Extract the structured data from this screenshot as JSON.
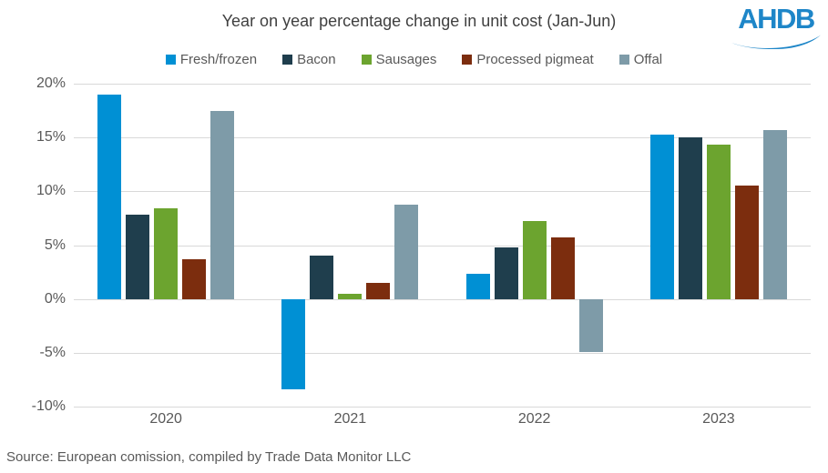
{
  "title": "Year on year percentage change in unit cost (Jan-Jun)",
  "logo": {
    "text": "AHDB",
    "color": "#1E86C8"
  },
  "source": "Source: European comission, compiled by Trade Data Monitor LLC",
  "palette": {
    "fresh_frozen": "#0090D4",
    "bacon": "#1F3E4D",
    "sausages": "#6CA42F",
    "processed_pigmeat": "#7C2D0E",
    "offal": "#7E9BA8",
    "gridline": "#D9D9D9",
    "axis_text": "#595959",
    "title_text": "#404040"
  },
  "chart_data": {
    "type": "bar",
    "title": "Year on year percentage change in unit cost (Jan-Jun)",
    "xlabel": "",
    "ylabel": "",
    "categories": [
      "2020",
      "2021",
      "2022",
      "2023"
    ],
    "series": [
      {
        "name": "Fresh/frozen",
        "color": "#0090D4",
        "values": [
          19.0,
          -8.4,
          2.3,
          15.3
        ]
      },
      {
        "name": "Bacon",
        "color": "#1F3E4D",
        "values": [
          7.8,
          4.0,
          4.8,
          15.0
        ]
      },
      {
        "name": "Sausages",
        "color": "#6CA42F",
        "values": [
          8.4,
          0.5,
          7.2,
          14.3
        ]
      },
      {
        "name": "Processed pigmeat",
        "color": "#7C2D0E",
        "values": [
          3.7,
          1.5,
          5.7,
          10.5
        ]
      },
      {
        "name": "Offal",
        "color": "#7E9BA8",
        "values": [
          17.5,
          8.8,
          -4.9,
          15.7
        ]
      }
    ],
    "ylim": [
      -10,
      20
    ],
    "ytick_step": 5,
    "ytick_labels": [
      "20%",
      "15%",
      "10%",
      "5%",
      "0%",
      "-5%",
      "-10%"
    ],
    "grid": true,
    "legend_position": "top"
  }
}
